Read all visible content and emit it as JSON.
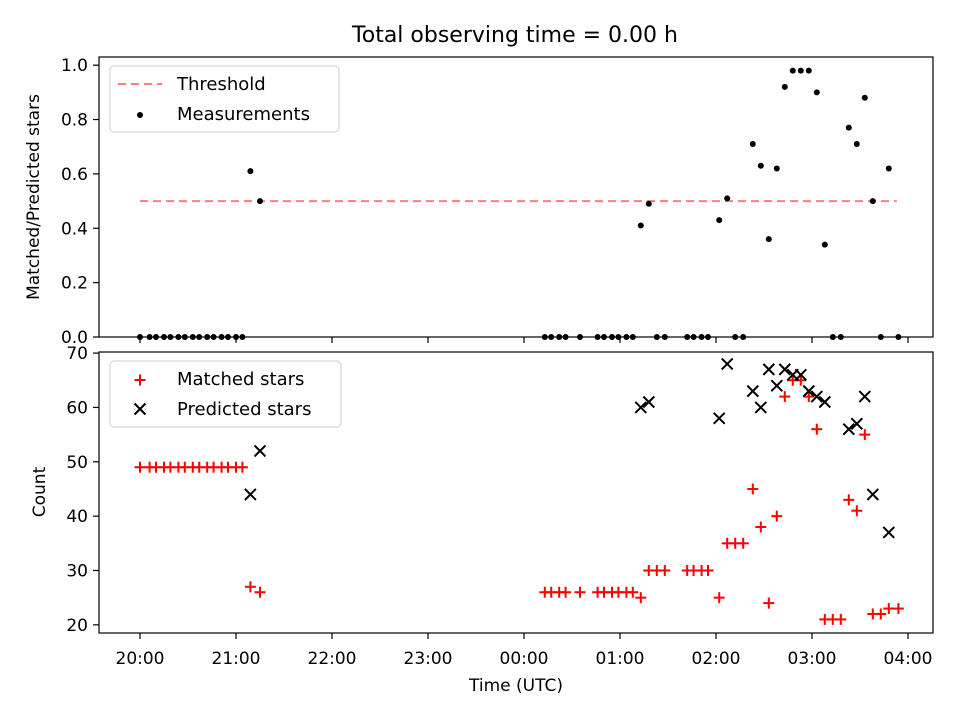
{
  "title": "Total observing time = 0.00 h",
  "colors": {
    "threshold": "#ff7f7f",
    "measurement": "#000000",
    "matched": "#ff0000",
    "predicted": "#000000"
  },
  "chart_data": [
    {
      "type": "scatter",
      "ylabel": "Matched/Predicted stars",
      "ylim": [
        0,
        1.03
      ],
      "yticks": [
        0.0,
        0.2,
        0.4,
        0.6,
        0.8,
        1.0
      ],
      "ytick_labels": [
        "0.0",
        "0.2",
        "0.4",
        "0.6",
        "0.8",
        "1.0"
      ],
      "legend_position": "upper-left",
      "threshold": {
        "name": "Threshold",
        "y": 0.5,
        "x_range": [
          "20:00",
          "03:53"
        ],
        "style": "dashed"
      },
      "series": [
        {
          "name": "Measurements",
          "marker": "dot",
          "points": [
            [
              "20:00",
              0
            ],
            [
              "20:06",
              0
            ],
            [
              "20:10",
              0
            ],
            [
              "20:15",
              0
            ],
            [
              "20:19",
              0
            ],
            [
              "20:24",
              0
            ],
            [
              "20:28",
              0
            ],
            [
              "20:33",
              0
            ],
            [
              "20:37",
              0
            ],
            [
              "20:42",
              0
            ],
            [
              "20:46",
              0
            ],
            [
              "20:51",
              0
            ],
            [
              "20:55",
              0
            ],
            [
              "21:00",
              0
            ],
            [
              "21:04",
              0
            ],
            [
              "21:09",
              0.61
            ],
            [
              "21:15",
              0.5
            ],
            [
              "00:13",
              0
            ],
            [
              "00:17",
              0
            ],
            [
              "00:22",
              0
            ],
            [
              "00:26",
              0
            ],
            [
              "00:35",
              0
            ],
            [
              "00:46",
              0
            ],
            [
              "00:50",
              0
            ],
            [
              "00:55",
              0
            ],
            [
              "00:59",
              0
            ],
            [
              "01:04",
              0
            ],
            [
              "01:08",
              0
            ],
            [
              "01:13",
              0.41
            ],
            [
              "01:18",
              0.49
            ],
            [
              "01:23",
              0
            ],
            [
              "01:28",
              0
            ],
            [
              "01:42",
              0
            ],
            [
              "01:46",
              0
            ],
            [
              "01:51",
              0
            ],
            [
              "01:55",
              0
            ],
            [
              "02:02",
              0.43
            ],
            [
              "02:07",
              0.51
            ],
            [
              "02:12",
              0
            ],
            [
              "02:17",
              0
            ],
            [
              "02:23",
              0.71
            ],
            [
              "02:28",
              0.63
            ],
            [
              "02:33",
              0.36
            ],
            [
              "02:38",
              0.62
            ],
            [
              "02:43",
              0.92
            ],
            [
              "02:48",
              0.98
            ],
            [
              "02:53",
              0.98
            ],
            [
              "02:58",
              0.98
            ],
            [
              "03:03",
              0.9
            ],
            [
              "03:08",
              0.34
            ],
            [
              "03:13",
              0
            ],
            [
              "03:18",
              0
            ],
            [
              "03:23",
              0.77
            ],
            [
              "03:28",
              0.71
            ],
            [
              "03:33",
              0.88
            ],
            [
              "03:38",
              0.5
            ],
            [
              "03:43",
              0
            ],
            [
              "03:48",
              0.62
            ],
            [
              "03:54",
              0
            ]
          ]
        }
      ]
    },
    {
      "type": "scatter",
      "xlabel": "Time (UTC)",
      "ylabel": "Count",
      "ylim": [
        18.5,
        70.2
      ],
      "yticks": [
        20,
        30,
        40,
        50,
        60,
        70
      ],
      "ytick_labels": [
        "20",
        "30",
        "40",
        "50",
        "60",
        "70"
      ],
      "x_ticks": [
        "20:00",
        "21:00",
        "22:00",
        "23:00",
        "00:00",
        "01:00",
        "02:00",
        "03:00",
        "04:00"
      ],
      "legend_position": "upper-left",
      "series": [
        {
          "name": "Matched stars",
          "marker": "plus",
          "points": [
            [
              "20:00",
              49
            ],
            [
              "20:06",
              49
            ],
            [
              "20:10",
              49
            ],
            [
              "20:15",
              49
            ],
            [
              "20:19",
              49
            ],
            [
              "20:24",
              49
            ],
            [
              "20:28",
              49
            ],
            [
              "20:33",
              49
            ],
            [
              "20:37",
              49
            ],
            [
              "20:42",
              49
            ],
            [
              "20:46",
              49
            ],
            [
              "20:51",
              49
            ],
            [
              "20:55",
              49
            ],
            [
              "21:00",
              49
            ],
            [
              "21:04",
              49
            ],
            [
              "21:09",
              27
            ],
            [
              "21:15",
              26
            ],
            [
              "00:13",
              26
            ],
            [
              "00:17",
              26
            ],
            [
              "00:22",
              26
            ],
            [
              "00:26",
              26
            ],
            [
              "00:35",
              26
            ],
            [
              "00:46",
              26
            ],
            [
              "00:50",
              26
            ],
            [
              "00:55",
              26
            ],
            [
              "00:59",
              26
            ],
            [
              "01:04",
              26
            ],
            [
              "01:08",
              26
            ],
            [
              "01:13",
              25
            ],
            [
              "01:18",
              30
            ],
            [
              "01:23",
              30
            ],
            [
              "01:28",
              30
            ],
            [
              "01:42",
              30
            ],
            [
              "01:46",
              30
            ],
            [
              "01:51",
              30
            ],
            [
              "01:55",
              30
            ],
            [
              "02:02",
              25
            ],
            [
              "02:07",
              35
            ],
            [
              "02:12",
              35
            ],
            [
              "02:17",
              35
            ],
            [
              "02:23",
              45
            ],
            [
              "02:28",
              38
            ],
            [
              "02:33",
              24
            ],
            [
              "02:38",
              40
            ],
            [
              "02:43",
              62
            ],
            [
              "02:48",
              65
            ],
            [
              "02:53",
              65
            ],
            [
              "02:58",
              62
            ],
            [
              "03:03",
              56
            ],
            [
              "03:08",
              21
            ],
            [
              "03:13",
              21
            ],
            [
              "03:18",
              21
            ],
            [
              "03:23",
              43
            ],
            [
              "03:28",
              41
            ],
            [
              "03:33",
              55
            ],
            [
              "03:38",
              22
            ],
            [
              "03:43",
              22
            ],
            [
              "03:48",
              23
            ],
            [
              "03:54",
              23
            ]
          ]
        },
        {
          "name": "Predicted stars",
          "marker": "x",
          "points": [
            [
              "21:09",
              44
            ],
            [
              "21:15",
              52
            ],
            [
              "01:13",
              60
            ],
            [
              "01:18",
              61
            ],
            [
              "02:02",
              58
            ],
            [
              "02:07",
              68
            ],
            [
              "02:23",
              63
            ],
            [
              "02:28",
              60
            ],
            [
              "02:33",
              67
            ],
            [
              "02:38",
              64
            ],
            [
              "02:43",
              67
            ],
            [
              "02:48",
              66
            ],
            [
              "02:53",
              66
            ],
            [
              "02:58",
              63
            ],
            [
              "03:03",
              62
            ],
            [
              "03:08",
              61
            ],
            [
              "03:23",
              56
            ],
            [
              "03:28",
              57
            ],
            [
              "03:33",
              62
            ],
            [
              "03:38",
              44
            ],
            [
              "03:48",
              37
            ]
          ]
        }
      ]
    }
  ]
}
